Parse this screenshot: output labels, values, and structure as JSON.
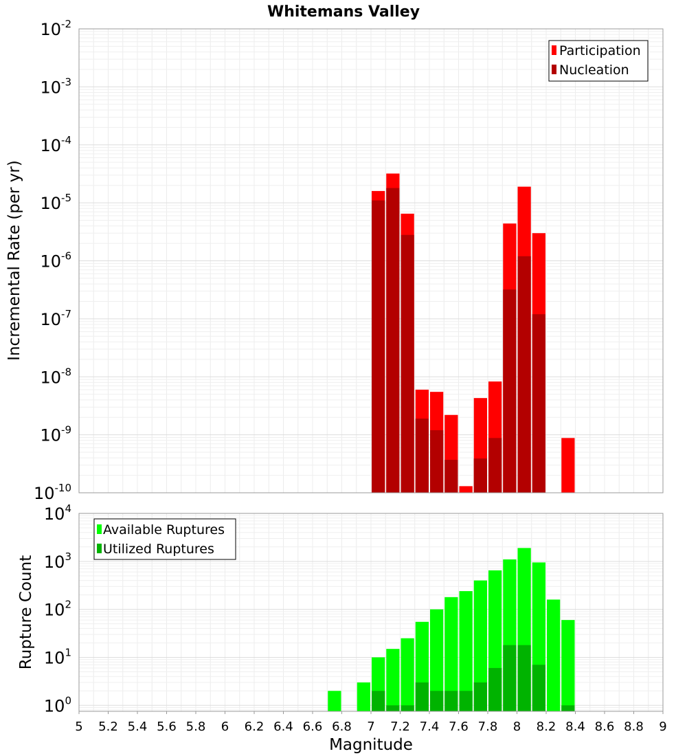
{
  "chart_data": [
    {
      "type": "bar",
      "title": "Whitemans Valley",
      "ylabel": "Incremental Rate (per yr)",
      "xlabel": "",
      "xlim": [
        5,
        9
      ],
      "ylim": [
        1e-10,
        0.01
      ],
      "yscale": "log",
      "grid": true,
      "legend": "top-right",
      "bin_width": 0.1,
      "y_ticks": [
        {
          "base": "10",
          "exp": "-10"
        },
        {
          "base": "10",
          "exp": "-9"
        },
        {
          "base": "10",
          "exp": "-8"
        },
        {
          "base": "10",
          "exp": "-7"
        },
        {
          "base": "10",
          "exp": "-6"
        },
        {
          "base": "10",
          "exp": "-5"
        },
        {
          "base": "10",
          "exp": "-4"
        },
        {
          "base": "10",
          "exp": "-3"
        },
        {
          "base": "10",
          "exp": "-2"
        }
      ],
      "x": [
        7.05,
        7.15,
        7.25,
        7.35,
        7.45,
        7.55,
        7.65,
        7.75,
        7.85,
        7.95,
        8.05,
        8.15,
        8.35
      ],
      "series": [
        {
          "name": "Participation",
          "color": "#ff0000",
          "values": [
            1.6e-05,
            3.2e-05,
            6.5e-06,
            6e-09,
            5.5e-09,
            2.2e-09,
            1.3e-10,
            4.3e-09,
            8.3e-09,
            4.4e-06,
            1.9e-05,
            3e-06,
            8.8e-10
          ]
        },
        {
          "name": "Nucleation",
          "color": "#b30000",
          "values": [
            1.1e-05,
            1.8e-05,
            2.8e-06,
            1.9e-09,
            1.2e-09,
            3.7e-10,
            null,
            3.9e-10,
            8.8e-10,
            3.2e-07,
            1.2e-06,
            1.2e-07,
            null
          ]
        }
      ]
    },
    {
      "type": "bar",
      "title": "",
      "ylabel": "Rupture Count",
      "xlabel": "Magnitude",
      "xlim": [
        5,
        9
      ],
      "ylim": [
        0.75,
        10000
      ],
      "yscale": "log",
      "grid": true,
      "legend": "top-left",
      "bin_width": 0.1,
      "y_ticks": [
        {
          "base": "10",
          "exp": "0"
        },
        {
          "base": "10",
          "exp": "1"
        },
        {
          "base": "10",
          "exp": "2"
        },
        {
          "base": "10",
          "exp": "3"
        },
        {
          "base": "10",
          "exp": "4"
        }
      ],
      "x_tick_labels": [
        "5",
        "5.2",
        "5.4",
        "5.6",
        "5.8",
        "6",
        "6.2",
        "6.4",
        "6.6",
        "6.8",
        "7",
        "7.2",
        "7.4",
        "7.6",
        "7.8",
        "8",
        "8.2",
        "8.4",
        "8.6",
        "8.8",
        "9"
      ],
      "x": [
        6.75,
        6.95,
        7.05,
        7.15,
        7.25,
        7.35,
        7.45,
        7.55,
        7.65,
        7.75,
        7.85,
        7.95,
        8.05,
        8.15,
        8.25,
        8.35
      ],
      "series": [
        {
          "name": "Available Ruptures",
          "color": "#00ff00",
          "values": [
            2,
            3,
            10,
            15,
            25,
            55,
            100,
            180,
            240,
            400,
            650,
            1100,
            1900,
            950,
            160,
            60
          ]
        },
        {
          "name": "Utilized Ruptures",
          "color": "#00b300",
          "values": [
            null,
            null,
            2,
            1,
            1,
            3,
            2,
            2,
            2,
            3,
            6,
            18,
            18,
            7,
            null,
            1
          ]
        }
      ]
    }
  ]
}
